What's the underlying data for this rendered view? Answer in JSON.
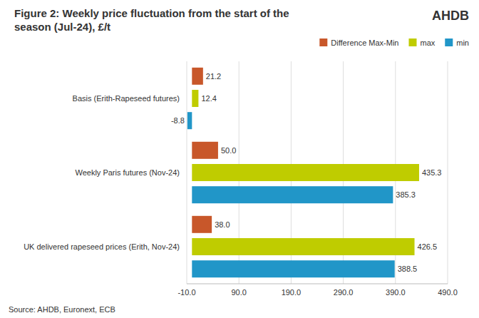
{
  "chart_data": {
    "type": "bar",
    "orientation": "horizontal",
    "title": "Figure 2: Weekly price fluctuation from the start of the\nseason (Jul-24), £/t",
    "categories": [
      "UK delivered rapeseed prices (Erith, Nov-24)",
      "Weekly Paris futures (Nov-24)",
      "Basis (Erith-Rapeseed futures)"
    ],
    "series": [
      {
        "name": "Difference Max-Min",
        "color": "#C8572A",
        "values": [
          38.0,
          50.0,
          21.2
        ],
        "value_labels": [
          "38.0",
          "50.0",
          "21.2"
        ]
      },
      {
        "name": "max",
        "color": "#BFCC00",
        "values": [
          426.5,
          435.3,
          12.4
        ],
        "value_labels": [
          "426.5",
          "435.3",
          "12.4"
        ]
      },
      {
        "name": "min",
        "color": "#2196C8",
        "values": [
          388.5,
          385.3,
          -8.8
        ],
        "value_labels": [
          "388.5",
          "385.3",
          "-8.8"
        ]
      }
    ],
    "xlim": [
      -10,
      490
    ],
    "xticks": [
      {
        "value": -10,
        "label": "-10.0"
      },
      {
        "value": 90,
        "label": "90.0"
      },
      {
        "value": 190,
        "label": "190.0"
      },
      {
        "value": 290,
        "label": "290.0"
      },
      {
        "value": 390,
        "label": "390.0"
      },
      {
        "value": 490,
        "label": "490.0"
      }
    ],
    "grid": true,
    "legend": "upper right",
    "data_labels": true,
    "annotations": [
      "Source: AHDB, Euronext, ECB",
      "AHDB"
    ]
  }
}
